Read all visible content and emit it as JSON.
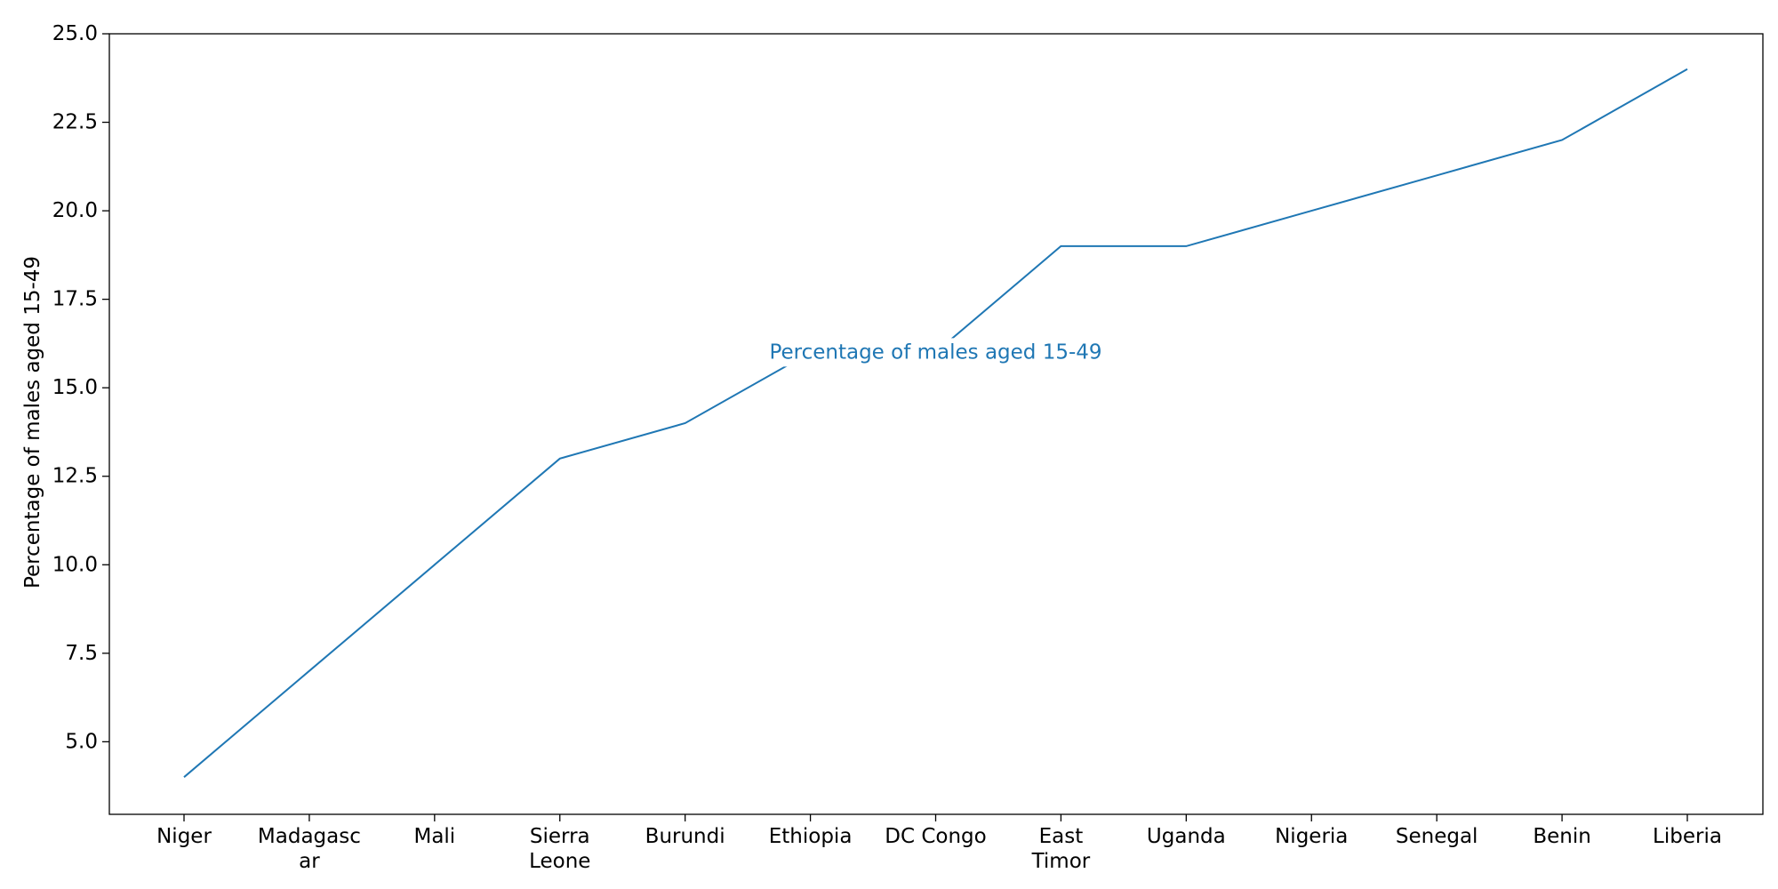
{
  "chart_data": {
    "type": "line",
    "title": "",
    "xlabel": "",
    "ylabel": "Percentage of males aged 15-49",
    "categories": [
      "Niger",
      "Madagascar",
      "Mali",
      "Sierra Leone",
      "Burundi",
      "Ethiopia",
      "DC Congo",
      "East Timor",
      "Uganda",
      "Nigeria",
      "Senegal",
      "Benin",
      "Liberia"
    ],
    "category_tick_lines": [
      [
        "Niger"
      ],
      [
        "Madagasc",
        "ar"
      ],
      [
        "Mali"
      ],
      [
        "Sierra",
        "Leone"
      ],
      [
        "Burundi"
      ],
      [
        "Ethiopia"
      ],
      [
        "DC Congo"
      ],
      [
        "East",
        "Timor"
      ],
      [
        "Uganda"
      ],
      [
        "Nigeria"
      ],
      [
        "Senegal"
      ],
      [
        "Benin"
      ],
      [
        "Liberia"
      ]
    ],
    "series": [
      {
        "values": [
          4,
          7,
          10,
          13,
          14,
          16,
          16,
          19,
          19,
          20,
          21,
          22,
          24
        ],
        "color": "#1f77b4"
      }
    ],
    "ylim": [
      2.95,
      25.0
    ],
    "yticks": [
      5.0,
      7.5,
      10.0,
      12.5,
      15.0,
      17.5,
      20.0,
      22.5,
      25.0
    ],
    "grid": false,
    "legend": "none",
    "annotation": {
      "text": "Percentage of males aged 15-49",
      "at_category": "DC Congo",
      "at_value": 16,
      "color": "#1f77b4"
    }
  }
}
